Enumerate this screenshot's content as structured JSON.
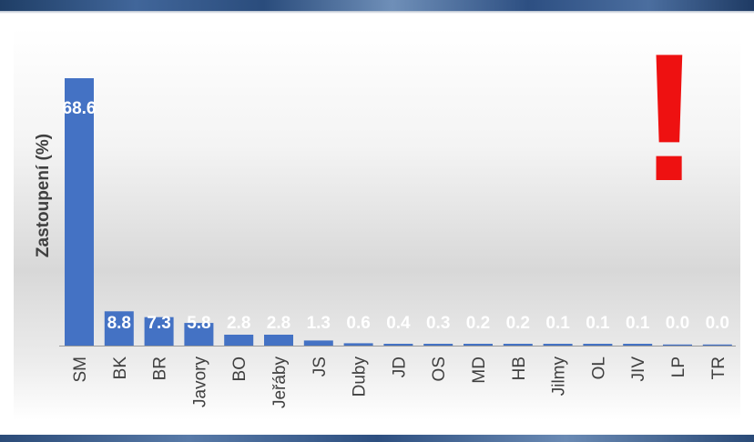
{
  "chart_data": {
    "type": "bar",
    "ylabel": "Zastoupení (%)",
    "categories": [
      "SM",
      "BK",
      "BR",
      "Javory",
      "BO",
      "Jeřáby",
      "JS",
      "Duby",
      "JD",
      "OS",
      "MD",
      "HB",
      "Jilmy",
      "OL",
      "JIV",
      "LP",
      "TR"
    ],
    "values": [
      68.6,
      8.8,
      7.3,
      5.8,
      2.8,
      2.8,
      1.3,
      0.6,
      0.4,
      0.3,
      0.2,
      0.2,
      0.1,
      0.1,
      0.1,
      0.0,
      0.0
    ],
    "data_labels": [
      "68.6",
      "8.8",
      "7.3",
      "5.8",
      "2.8",
      "2.8",
      "1.3",
      "0.6",
      "0.4",
      "0.3",
      "0.2",
      "0.2",
      "0.1",
      "0.1",
      "0.1",
      "0.0",
      "0.0"
    ],
    "ylim": [
      0,
      68.6
    ],
    "grid": false,
    "legend": "none",
    "colors": {
      "bar": "#4472c4",
      "label": "#ffffff",
      "axis_text": "#404040"
    }
  },
  "annotation": {
    "symbol": "!",
    "color": "#ee1111"
  }
}
